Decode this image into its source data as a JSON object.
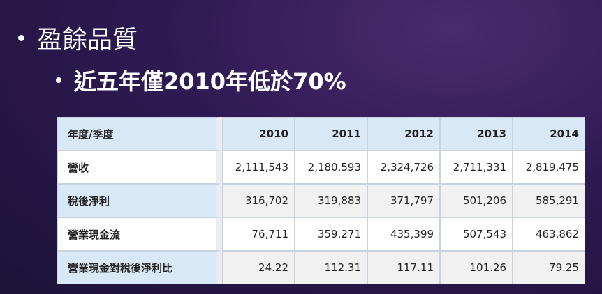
{
  "slide": {
    "bullets": [
      "盈餘品質",
      "近五年僅2010年低於70%"
    ],
    "table": {
      "header": [
        "年度/季度",
        "2010",
        "2011",
        "2012",
        "2013",
        "2014"
      ],
      "rows": [
        [
          "營收",
          "2,111,543",
          "2,180,593",
          "2,324,726",
          "2,711,331",
          "2,819,475"
        ],
        [
          "稅後淨利",
          "316,702",
          "319,883",
          "371,797",
          "501,206",
          "585,291"
        ],
        [
          "營業現金流",
          "76,711",
          "359,271",
          "435,399",
          "507,543",
          "463,862"
        ],
        [
          "營業現金對稅後淨利比",
          "24.22",
          "112.31",
          "117.11",
          "101.26",
          "79.25"
        ]
      ]
    }
  }
}
